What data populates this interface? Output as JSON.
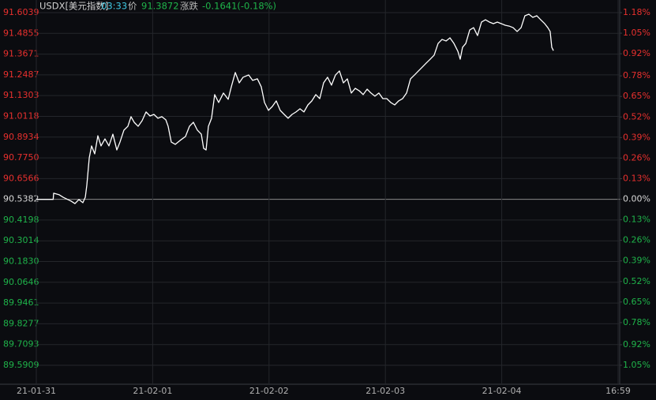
{
  "chart_data": {
    "type": "line",
    "header": {
      "symbol": "USDX[美元指数]",
      "time": "03:33",
      "price_label": "价",
      "price": 91.3872,
      "change_label": "涨跌",
      "change": "-0.1641(-0.18%)"
    },
    "x": [
      0,
      0.145,
      0.149,
      0.197,
      0.231,
      0.299,
      0.332,
      0.366,
      0.4,
      0.421,
      0.434,
      0.455,
      0.475,
      0.502,
      0.529,
      0.556,
      0.59,
      0.624,
      0.658,
      0.692,
      0.719,
      0.753,
      0.787,
      0.814,
      0.841,
      0.875,
      0.909,
      0.943,
      0.977,
      1.011,
      1.045,
      1.079,
      1.113,
      1.133,
      1.16,
      1.194,
      1.235,
      1.282,
      1.316,
      1.35,
      1.384,
      1.418,
      1.438,
      1.459,
      1.479,
      1.506,
      1.533,
      1.567,
      1.608,
      1.649,
      1.676,
      1.71,
      1.744,
      1.777,
      1.825,
      1.859,
      1.9,
      1.933,
      1.961,
      1.995,
      2.028,
      2.062,
      2.096,
      2.13,
      2.164,
      2.198,
      2.232,
      2.266,
      2.3,
      2.334,
      2.368,
      2.402,
      2.436,
      2.469,
      2.503,
      2.537,
      2.571,
      2.605,
      2.639,
      2.673,
      2.707,
      2.741,
      2.775,
      2.809,
      2.843,
      2.876,
      2.91,
      2.944,
      2.978,
      3.012,
      3.046,
      3.08,
      3.114,
      3.148,
      3.182,
      3.216,
      3.25,
      3.284,
      3.317,
      3.351,
      3.385,
      3.419,
      3.453,
      3.487,
      3.521,
      3.555,
      3.589,
      3.623,
      3.643,
      3.663,
      3.691,
      3.725,
      3.758,
      3.792,
      3.826,
      3.86,
      3.894,
      3.928,
      3.962,
      3.996,
      4.03,
      4.064,
      4.098,
      4.132,
      4.166,
      4.199,
      4.233,
      4.267,
      4.301,
      4.335,
      4.369,
      4.396,
      4.416,
      4.43,
      4.444
    ],
    "series": [
      {
        "name": "USDX",
        "color": "#ffffff",
        "values": [
          90.538,
          90.538,
          90.573,
          90.564,
          90.55,
          90.528,
          90.514,
          90.537,
          90.519,
          90.55,
          90.618,
          90.775,
          90.843,
          90.798,
          90.901,
          90.843,
          90.883,
          90.843,
          90.91,
          90.82,
          90.865,
          90.933,
          90.955,
          91.01,
          90.978,
          90.955,
          90.987,
          91.037,
          91.014,
          91.023,
          91.001,
          91.01,
          90.992,
          90.955,
          90.865,
          90.852,
          90.874,
          90.897,
          90.955,
          90.978,
          90.933,
          90.91,
          90.829,
          90.82,
          90.955,
          91.001,
          91.136,
          91.091,
          91.145,
          91.109,
          91.181,
          91.262,
          91.203,
          91.235,
          91.248,
          91.217,
          91.226,
          91.181,
          91.091,
          91.046,
          91.068,
          91.1,
          91.046,
          91.023,
          91.001,
          91.023,
          91.037,
          91.055,
          91.037,
          91.077,
          91.1,
          91.136,
          91.113,
          91.203,
          91.235,
          91.19,
          91.248,
          91.271,
          91.203,
          91.226,
          91.145,
          91.172,
          91.158,
          91.136,
          91.167,
          91.145,
          91.127,
          91.145,
          91.113,
          91.113,
          91.091,
          91.077,
          91.1,
          91.113,
          91.145,
          91.226,
          91.248,
          91.271,
          91.293,
          91.316,
          91.338,
          91.361,
          91.428,
          91.451,
          91.442,
          91.46,
          91.428,
          91.383,
          91.338,
          91.406,
          91.428,
          91.505,
          91.518,
          91.473,
          91.55,
          91.563,
          91.55,
          91.541,
          91.55,
          91.541,
          91.532,
          91.527,
          91.518,
          91.496,
          91.518,
          91.586,
          91.595,
          91.577,
          91.586,
          91.563,
          91.541,
          91.518,
          91.496,
          91.406,
          91.387
        ]
      }
    ],
    "xlim": [
      0,
      5
    ],
    "xticks": [
      {
        "value": 0,
        "label": "21-01-31"
      },
      {
        "value": 1,
        "label": "21-02-01"
      },
      {
        "value": 2,
        "label": "21-02-02"
      },
      {
        "value": 3,
        "label": "21-02-03"
      },
      {
        "value": 4,
        "label": "21-02-04"
      },
      {
        "value": 5,
        "label": "16:59"
      }
    ],
    "ylim": [
      89.5909,
      91.6039
    ],
    "yticks": [
      91.6039,
      91.4855,
      91.3671,
      91.2487,
      91.1303,
      91.0118,
      90.8934,
      {
        "value": 90.775,
        "label": "90.7750"
      },
      90.6566,
      90.5382,
      90.4198,
      90.3014,
      {
        "value": 90.183,
        "label": "90.1830"
      },
      90.0646,
      89.9461,
      89.8277,
      89.7093,
      89.5909
    ],
    "y2lim": [
      -1.05,
      1.18
    ],
    "y2ticks": [
      {
        "value": 1.18,
        "label": "1.18%"
      },
      {
        "value": 1.05,
        "label": "1.05%"
      },
      {
        "value": 0.92,
        "label": "0.92%"
      },
      {
        "value": 0.78,
        "label": "0.78%"
      },
      {
        "value": 0.65,
        "label": "0.65%"
      },
      {
        "value": 0.52,
        "label": "0.52%"
      },
      {
        "value": 0.39,
        "label": "0.39%"
      },
      {
        "value": 0.26,
        "label": "0.26%"
      },
      {
        "value": 0.13,
        "label": "0.13%"
      },
      {
        "value": 0,
        "label": "0.00%"
      },
      {
        "value": -0.13,
        "label": "0.13%"
      },
      {
        "value": -0.26,
        "label": "0.26%"
      },
      {
        "value": -0.39,
        "label": "0.39%"
      },
      {
        "value": -0.52,
        "label": "0.52%"
      },
      {
        "value": -0.65,
        "label": "0.65%"
      },
      {
        "value": -0.78,
        "label": "0.78%"
      },
      {
        "value": -0.92,
        "label": "0.92%"
      },
      {
        "value": -1.05,
        "label": "1.05%"
      }
    ],
    "grid": true,
    "up_color": "#e8302e",
    "down_color": "#1fb34a",
    "flat_color": "#d8d8d8"
  }
}
